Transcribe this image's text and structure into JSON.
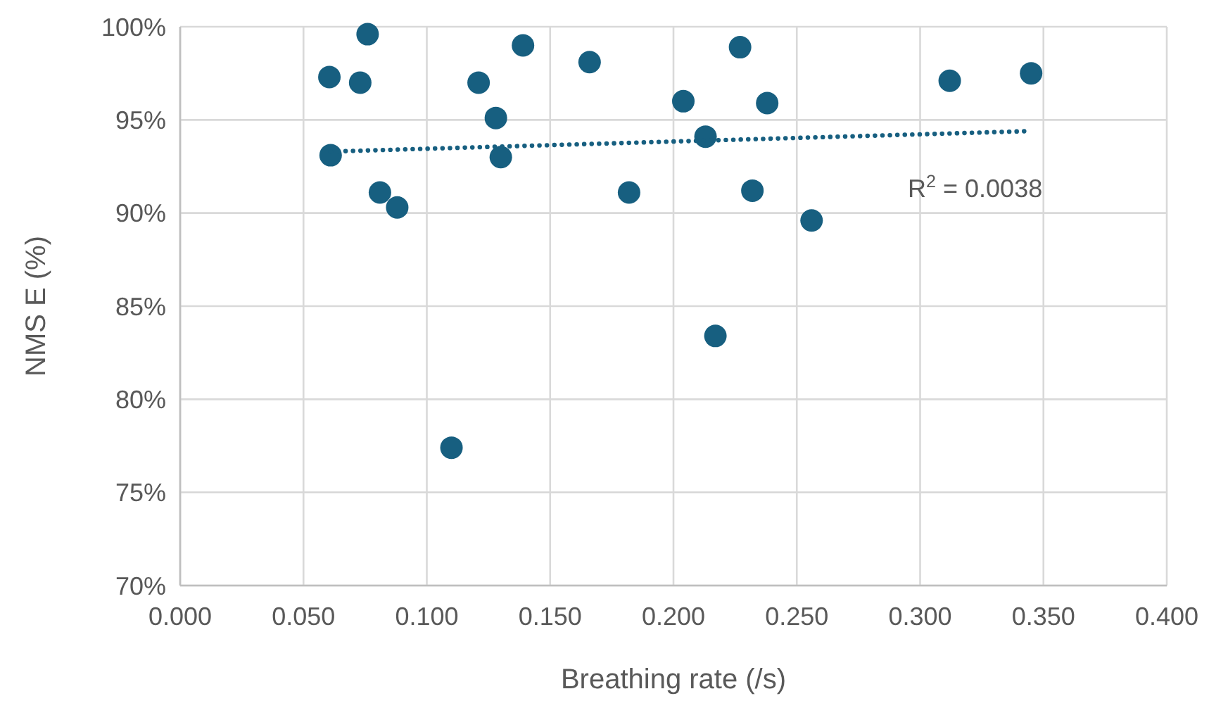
{
  "chart_data": {
    "type": "scatter",
    "xlabel": "Breathing rate (/s)",
    "ylabel": "NMS E (%)",
    "xlim": [
      0,
      0.4
    ],
    "xticks": [
      {
        "value": 0,
        "label": "0.000"
      },
      {
        "value": 0.05,
        "label": "0.050"
      },
      {
        "value": 0.1,
        "label": "0.100"
      },
      {
        "value": 0.15,
        "label": "0.150"
      },
      {
        "value": 0.2,
        "label": "0.200"
      },
      {
        "value": 0.25,
        "label": "0.250"
      },
      {
        "value": 0.3,
        "label": "0.300"
      },
      {
        "value": 0.35,
        "label": "0.350"
      },
      {
        "value": 0.4,
        "label": "0.400"
      }
    ],
    "ylim": [
      70,
      100
    ],
    "yticks": [
      {
        "value": 70,
        "label": "70%"
      },
      {
        "value": 75,
        "label": "75%"
      },
      {
        "value": 80,
        "label": "80%"
      },
      {
        "value": 85,
        "label": "85%"
      },
      {
        "value": 90,
        "label": "90%"
      },
      {
        "value": 95,
        "label": "95%"
      },
      {
        "value": 100,
        "label": "100%"
      }
    ],
    "grid": true,
    "marker": "circle",
    "series": [
      {
        "color": "#175f80",
        "x": [
          0.076,
          0.0605,
          0.073,
          0.121,
          0.139,
          0.166,
          0.204,
          0.128,
          0.061,
          0.13,
          0.081,
          0.088,
          0.182,
          0.11,
          0.227,
          0.238,
          0.312,
          0.345,
          0.213,
          0.232,
          0.256,
          0.217
        ],
        "values": [
          99.6,
          97.3,
          97.0,
          97.0,
          99.0,
          98.1,
          96.0,
          95.1,
          93.1,
          93.0,
          91.1,
          90.3,
          91.1,
          77.4,
          98.9,
          95.9,
          97.1,
          97.5,
          94.1,
          91.2,
          89.6,
          83.4
        ]
      },
      {
        "type": "line",
        "color": "#175f80",
        "line_style": "dotted",
        "marker": "none",
        "x": [
          0.061,
          0.345
        ],
        "values": [
          93.3,
          94.4
        ]
      }
    ],
    "annotations": [
      "R$^{2}$ = 0.0038"
    ]
  }
}
